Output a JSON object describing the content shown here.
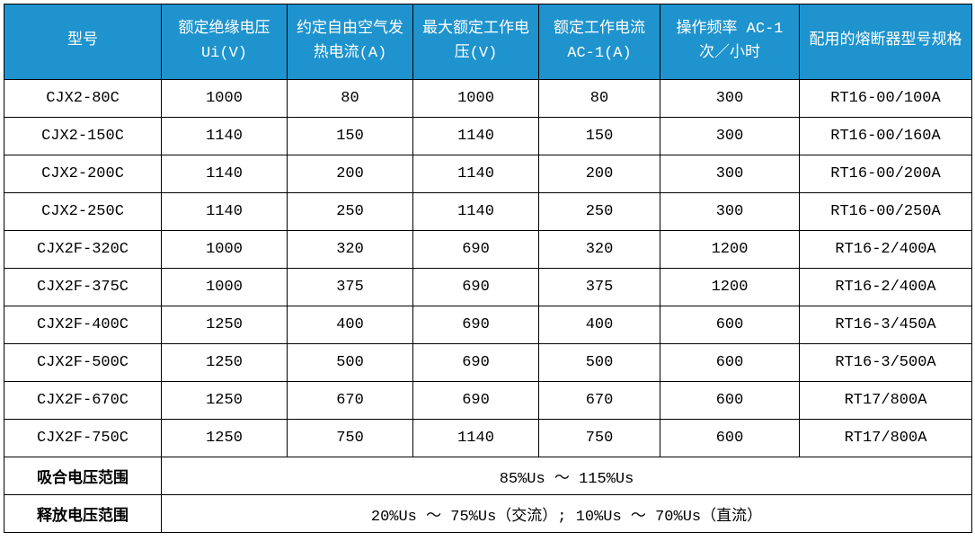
{
  "colors": {
    "header_bg": "#1e93cd",
    "header_text": "#ffffff",
    "border": "#000000",
    "body_text": "#000000"
  },
  "table": {
    "headers": [
      "型号",
      "额定绝缘电压 Ui(V)",
      "约定自由空气发热电流(A)",
      "最大额定工作电压(V)",
      "额定工作电流 AC-1(A)",
      "操作频率 AC-1 次／小时",
      "配用的熔断器型号规格"
    ],
    "rows": [
      [
        "CJX2-80C",
        "1000",
        "80",
        "1000",
        "80",
        "300",
        "RT16-00/100A"
      ],
      [
        "CJX2-150C",
        "1140",
        "150",
        "1140",
        "150",
        "300",
        "RT16-00/160A"
      ],
      [
        "CJX2-200C",
        "1140",
        "200",
        "1140",
        "200",
        "300",
        "RT16-00/200A"
      ],
      [
        "CJX2-250C",
        "1140",
        "250",
        "1140",
        "250",
        "300",
        "RT16-00/250A"
      ],
      [
        "CJX2F-320C",
        "1000",
        "320",
        "690",
        "320",
        "1200",
        "RT16-2/400A"
      ],
      [
        "CJX2F-375C",
        "1000",
        "375",
        "690",
        "375",
        "1200",
        "RT16-2/400A"
      ],
      [
        "CJX2F-400C",
        "1250",
        "400",
        "690",
        "400",
        "600",
        "RT16-3/450A"
      ],
      [
        "CJX2F-500C",
        "1250",
        "500",
        "690",
        "500",
        "600",
        "RT16-3/500A"
      ],
      [
        "CJX2F-670C",
        "1250",
        "670",
        "690",
        "670",
        "600",
        "RT17/800A"
      ],
      [
        "CJX2F-750C",
        "1250",
        "750",
        "1140",
        "750",
        "600",
        "RT17/800A"
      ]
    ],
    "footer": [
      {
        "label": "吸合电压范围",
        "value": "85%Us ～ 115%Us"
      },
      {
        "label": "释放电压范围",
        "value": "20%Us ～ 75%Us（交流）; 10%Us ～ 70%Us（直流）"
      }
    ]
  }
}
